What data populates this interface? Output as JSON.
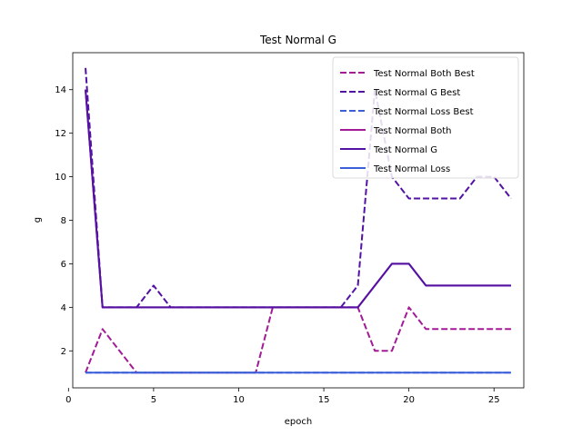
{
  "chart_data": {
    "type": "line",
    "title": "Test Normal G",
    "xlabel": "epoch",
    "ylabel": "g",
    "xlim": [
      0.25,
      26.75
    ],
    "ylim": [
      0.3,
      15.7
    ],
    "xticks": [
      0,
      5,
      10,
      15,
      20,
      25
    ],
    "yticks": [
      2,
      4,
      6,
      8,
      10,
      12,
      14
    ],
    "grid": false,
    "legend_position": "top-right",
    "x": [
      1,
      2,
      3,
      4,
      5,
      6,
      7,
      8,
      9,
      10,
      11,
      12,
      13,
      14,
      15,
      16,
      17,
      18,
      19,
      20,
      21,
      22,
      23,
      24,
      25,
      26
    ],
    "series": [
      {
        "name": "Test Normal Both Best",
        "color": "#a31a96",
        "dash": "dashed",
        "values": [
          1,
          3,
          2,
          1,
          1,
          1,
          1,
          1,
          1,
          1,
          1,
          4,
          4,
          4,
          4,
          4,
          4,
          2,
          2,
          4,
          3,
          3,
          3,
          3,
          3,
          3
        ]
      },
      {
        "name": "Test Normal G Best",
        "color": "#5212a3",
        "dash": "dashed",
        "values": [
          15,
          4,
          4,
          4,
          5,
          4,
          4,
          4,
          4,
          4,
          4,
          4,
          4,
          4,
          4,
          4,
          5,
          14,
          10,
          9,
          9,
          9,
          9,
          10,
          10,
          9
        ]
      },
      {
        "name": "Test Normal Loss Best",
        "color": "#3a5fd9",
        "dash": "dashed",
        "values": [
          1,
          1,
          1,
          1,
          1,
          1,
          1,
          1,
          1,
          1,
          1,
          1,
          1,
          1,
          1,
          1,
          1,
          1,
          1,
          1,
          1,
          1,
          1,
          1,
          1,
          1
        ]
      },
      {
        "name": "Test Normal Both",
        "color": "#a31a96",
        "dash": "solid",
        "values": [
          14,
          4,
          4,
          4,
          4,
          4,
          4,
          4,
          4,
          4,
          4,
          4,
          4,
          4,
          4,
          4,
          4,
          5,
          6,
          6,
          5,
          5,
          5,
          5,
          5,
          5
        ]
      },
      {
        "name": "Test Normal G",
        "color": "#5212a3",
        "dash": "solid",
        "values": [
          14,
          4,
          4,
          4,
          4,
          4,
          4,
          4,
          4,
          4,
          4,
          4,
          4,
          4,
          4,
          4,
          4,
          5,
          6,
          6,
          5,
          5,
          5,
          5,
          5,
          5
        ]
      },
      {
        "name": "Test Normal Loss",
        "color": "#3a5fd9",
        "dash": "solid",
        "values": [
          1,
          1,
          1,
          1,
          1,
          1,
          1,
          1,
          1,
          1,
          1,
          1,
          1,
          1,
          1,
          1,
          1,
          1,
          1,
          1,
          1,
          1,
          1,
          1,
          1,
          1
        ]
      }
    ]
  }
}
